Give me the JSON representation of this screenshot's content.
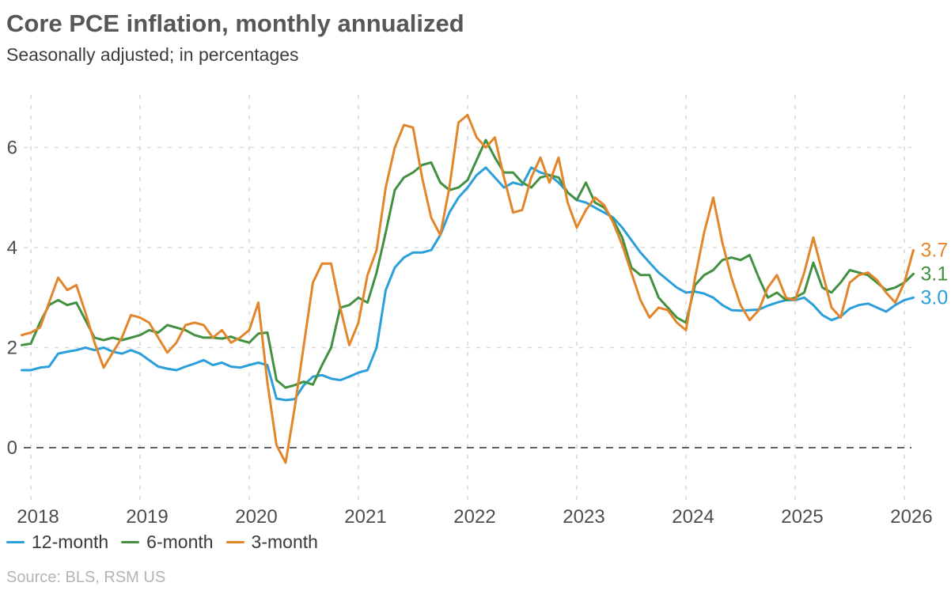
{
  "chart_data": {
    "type": "line",
    "title": "Core PCE inflation, monthly annualized",
    "subtitle": "Seasonally adjusted; in percentages",
    "source": "Source: BLS, RSM US",
    "frequency": "monthly",
    "x_start": "2017-12",
    "x_end": "2026-02",
    "x_ticks": [
      2018,
      2019,
      2020,
      2021,
      2022,
      2023,
      2024,
      2025,
      2026
    ],
    "y_ticks": [
      0,
      2,
      4,
      6
    ],
    "ylim": [
      -0.6,
      7.0
    ],
    "grid": "dashed",
    "legend_position": "bottom-left",
    "colors": {
      "blue": "#2b9fd9",
      "green": "#429040",
      "orange": "#e2862c",
      "gridline": "#d9d9d9",
      "zero_line": "#4d4d4d",
      "axis_text": "#4d4d4d",
      "source_text": "#b4b4b6"
    },
    "series": [
      {
        "name": "12-month",
        "color": "#2b9fd9",
        "end_label": "3.0",
        "values": [
          1.55,
          1.55,
          1.6,
          1.62,
          1.88,
          1.92,
          1.95,
          2.0,
          1.95,
          2.0,
          1.92,
          1.88,
          1.95,
          1.88,
          1.75,
          1.62,
          1.58,
          1.55,
          1.62,
          1.68,
          1.75,
          1.65,
          1.7,
          1.62,
          1.6,
          1.65,
          1.7,
          1.65,
          0.98,
          0.95,
          0.97,
          1.25,
          1.42,
          1.45,
          1.38,
          1.35,
          1.42,
          1.5,
          1.55,
          2.0,
          3.15,
          3.6,
          3.8,
          3.9,
          3.9,
          3.95,
          4.25,
          4.7,
          5.0,
          5.2,
          5.45,
          5.6,
          5.4,
          5.2,
          5.3,
          5.25,
          5.6,
          5.5,
          5.45,
          5.3,
          5.1,
          4.95,
          4.9,
          4.8,
          4.7,
          4.6,
          4.4,
          4.15,
          3.9,
          3.7,
          3.5,
          3.35,
          3.2,
          3.1,
          3.12,
          3.08,
          3.0,
          2.85,
          2.75,
          2.74,
          2.75,
          2.76,
          2.84,
          2.9,
          2.95,
          2.95,
          3.0,
          2.85,
          2.65,
          2.55,
          2.62,
          2.78,
          2.85,
          2.88,
          2.8,
          2.72,
          2.85,
          2.95,
          3.0
        ]
      },
      {
        "name": "6-month",
        "color": "#429040",
        "end_label": "3.1",
        "values": [
          2.05,
          2.08,
          2.5,
          2.85,
          2.95,
          2.85,
          2.9,
          2.55,
          2.2,
          2.15,
          2.2,
          2.15,
          2.2,
          2.25,
          2.35,
          2.3,
          2.45,
          2.4,
          2.35,
          2.25,
          2.2,
          2.2,
          2.18,
          2.22,
          2.15,
          2.1,
          2.28,
          2.3,
          1.35,
          1.2,
          1.25,
          1.32,
          1.26,
          1.65,
          2.0,
          2.8,
          2.85,
          3.0,
          2.9,
          3.5,
          4.3,
          5.15,
          5.4,
          5.5,
          5.65,
          5.7,
          5.3,
          5.15,
          5.2,
          5.35,
          5.75,
          6.15,
          5.8,
          5.5,
          5.5,
          5.3,
          5.2,
          5.4,
          5.45,
          5.4,
          5.1,
          4.95,
          5.3,
          4.9,
          4.8,
          4.55,
          4.2,
          3.6,
          3.45,
          3.45,
          3.0,
          2.8,
          2.6,
          2.5,
          3.25,
          3.45,
          3.55,
          3.75,
          3.8,
          3.75,
          3.85,
          3.4,
          3.0,
          3.1,
          2.95,
          3.0,
          3.1,
          3.7,
          3.2,
          3.1,
          3.3,
          3.55,
          3.5,
          3.45,
          3.3,
          3.15,
          3.2,
          3.3,
          3.1
        ]
      },
      {
        "name": "3-month",
        "color": "#e2862c",
        "end_label": "3.7",
        "values": [
          2.25,
          2.3,
          2.4,
          2.9,
          3.4,
          3.15,
          3.25,
          2.7,
          2.1,
          1.6,
          1.9,
          2.2,
          2.65,
          2.6,
          2.5,
          2.2,
          1.9,
          2.1,
          2.45,
          2.5,
          2.45,
          2.2,
          2.35,
          2.1,
          2.2,
          2.35,
          2.9,
          1.3,
          0.05,
          -0.3,
          0.8,
          2.05,
          3.3,
          3.68,
          3.68,
          2.8,
          2.05,
          2.5,
          3.45,
          3.95,
          5.2,
          6.0,
          6.45,
          6.4,
          5.4,
          4.6,
          4.25,
          5.2,
          6.5,
          6.65,
          6.2,
          6.0,
          6.2,
          5.4,
          4.7,
          4.75,
          5.4,
          5.8,
          5.3,
          5.8,
          4.9,
          4.4,
          4.75,
          5.0,
          4.85,
          4.5,
          4.05,
          3.5,
          2.95,
          2.6,
          2.8,
          2.75,
          2.5,
          2.35,
          3.4,
          4.3,
          5.0,
          4.1,
          3.4,
          2.85,
          2.55,
          2.75,
          3.2,
          3.45,
          3.0,
          2.95,
          3.5,
          4.2,
          3.5,
          2.8,
          2.6,
          3.3,
          3.45,
          3.5,
          3.35,
          3.1,
          2.9,
          3.3,
          3.7
        ]
      }
    ]
  }
}
